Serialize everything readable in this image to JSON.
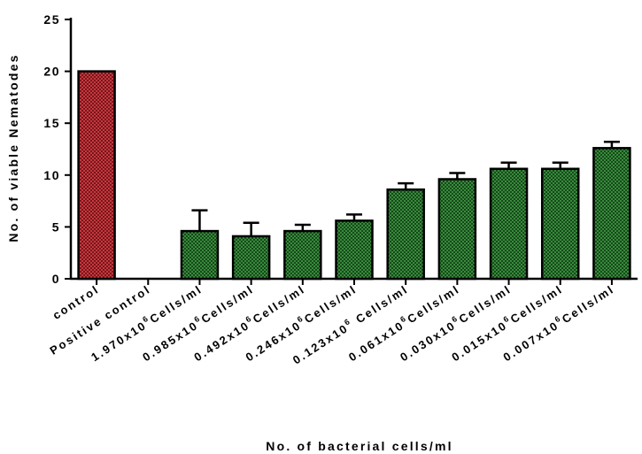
{
  "chart_data": {
    "type": "bar",
    "title": "",
    "xlabel": "No. of bacterial cells/ml",
    "ylabel": "No. of viable Nematodes",
    "ylim": [
      0,
      25
    ],
    "yticks": [
      "0",
      "5",
      "10",
      "15",
      "20",
      "25"
    ],
    "categories": [
      "control",
      "Positive control",
      "1.970x10^6 Cells/ml",
      "0.985x10^6 Cells/ml",
      "0.492x10^6 Cells/ml",
      "0.246x10^6 Cells/ml",
      "0.123x10^6 Cells/ml",
      "0.061x10^6 Cells/ml",
      "0.030x10^6 Cells/ml",
      "0.015x10^6 Cells/ml",
      "0.007x10^6 Cells/ml"
    ],
    "category_labels": [
      {
        "pre": "control",
        "sup": "",
        "post": ""
      },
      {
        "pre": "Positive control",
        "sup": "",
        "post": ""
      },
      {
        "pre": "1.970x10",
        "sup": "6",
        "post": "Cells/ml"
      },
      {
        "pre": "0.985x10",
        "sup": "6",
        "post": "Cells/ml"
      },
      {
        "pre": "0.492x10",
        "sup": "6",
        "post": "Cells/ml"
      },
      {
        "pre": "0.246x10",
        "sup": "6",
        "post": "Cells/ml"
      },
      {
        "pre": "0.123x10",
        "sup": "6",
        "post": " Cells/ml"
      },
      {
        "pre": "0.061x10",
        "sup": "6",
        "post": "Cells/ml"
      },
      {
        "pre": "0.030x10",
        "sup": "6",
        "post": "Cells/ml"
      },
      {
        "pre": "0.015x10",
        "sup": "6",
        "post": "Cells/ml"
      },
      {
        "pre": "0.007x10",
        "sup": "6",
        "post": "Cells/ml"
      }
    ],
    "values": [
      20,
      0,
      4.6,
      4.1,
      4.6,
      5.6,
      8.6,
      9.6,
      10.6,
      10.6,
      12.6
    ],
    "error_upper": [
      0,
      0,
      2.0,
      1.3,
      0.6,
      0.6,
      0.6,
      0.6,
      0.6,
      0.6,
      0.6
    ],
    "colors": {
      "control": "#b02a30",
      "treatment": "#2e7d32",
      "outline": "#000000"
    },
    "grid": false,
    "legend": "none"
  }
}
